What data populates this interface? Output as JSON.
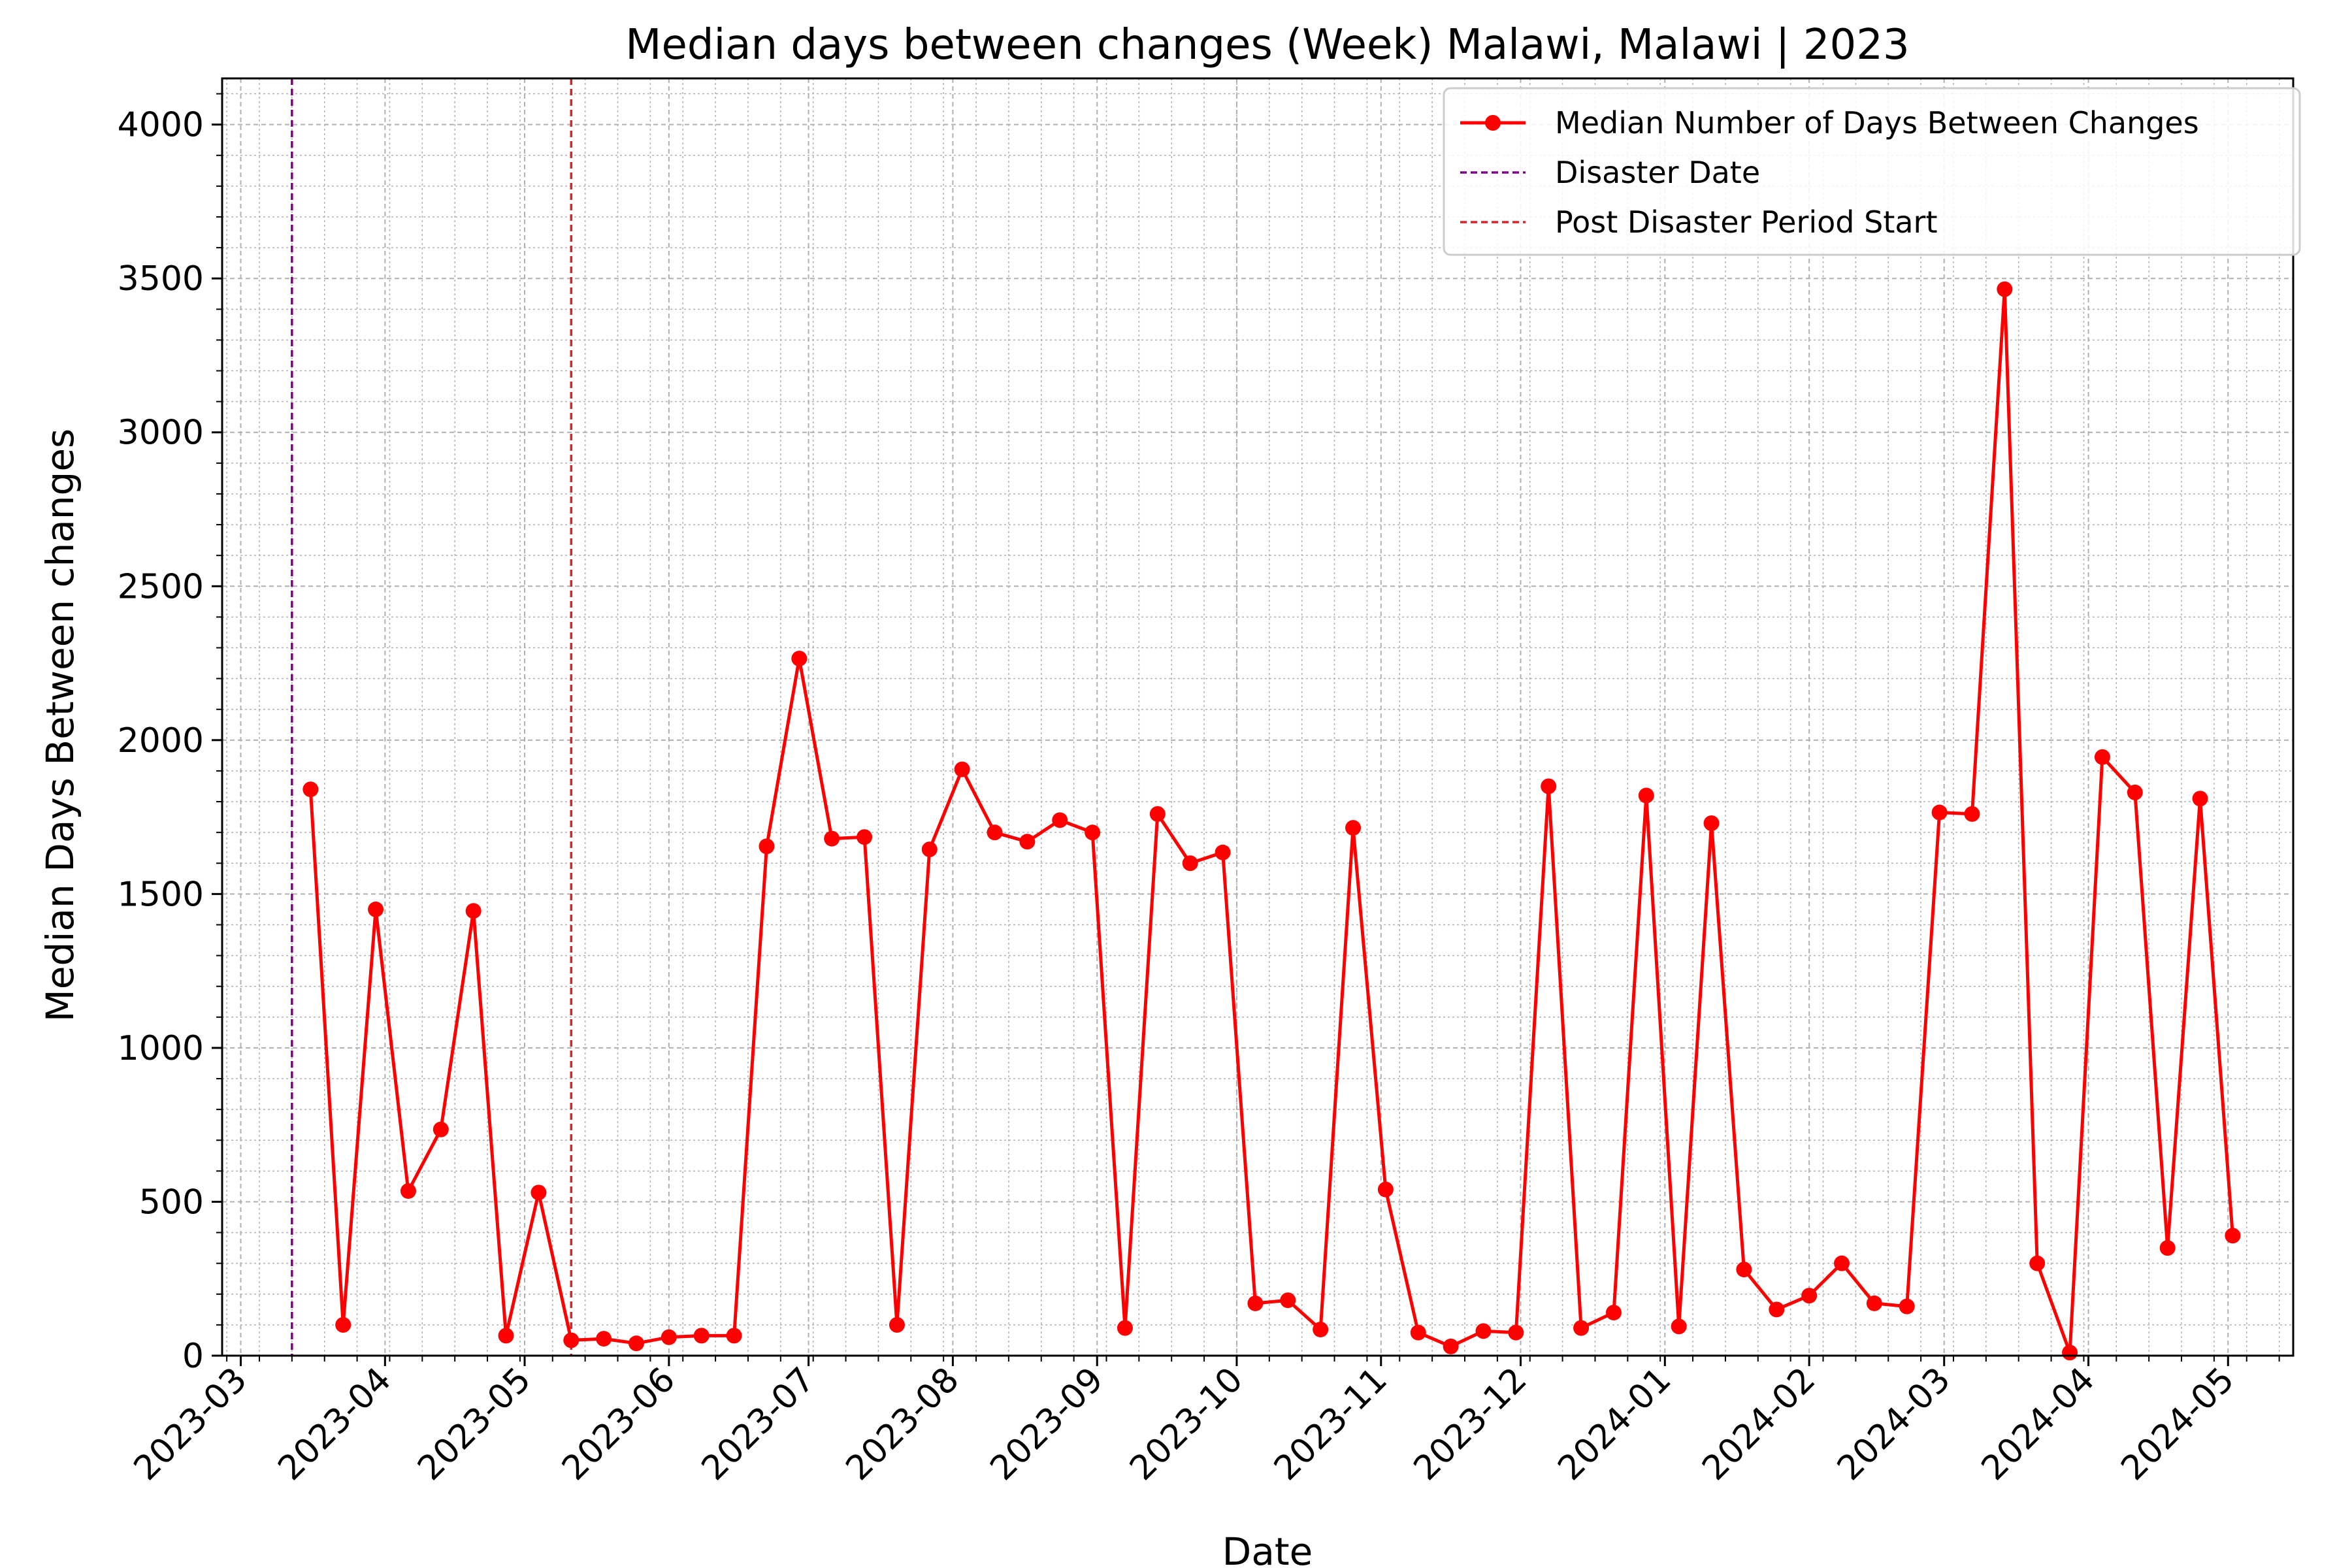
{
  "chart_data": {
    "type": "line",
    "title": "Median days between changes (Week) Malawi, Malawi | 2023",
    "xlabel": "Date",
    "ylabel": "Median Days Between changes",
    "ylim": [
      0,
      4150
    ],
    "yticks": [
      0,
      500,
      1000,
      1500,
      2000,
      2500,
      3000,
      3500,
      4000
    ],
    "xlim": [
      "2023-02-25",
      "2024-05-15"
    ],
    "xticks": [
      "2023-03-01",
      "2023-04-01",
      "2023-05-01",
      "2023-06-01",
      "2023-07-01",
      "2023-08-01",
      "2023-09-01",
      "2023-10-01",
      "2023-11-01",
      "2023-12-01",
      "2024-01-01",
      "2024-02-01",
      "2024-03-01",
      "2024-04-01",
      "2024-05-01"
    ],
    "xtick_labels": [
      "2023-03",
      "2023-04",
      "2023-05",
      "2023-06",
      "2023-07",
      "2023-08",
      "2023-09",
      "2023-10",
      "2023-11",
      "2023-12",
      "2024-01",
      "2024-02",
      "2024-03",
      "2024-04",
      "2024-05"
    ],
    "grid": true,
    "legend_position": "top-right",
    "legend": [
      "Median Number of Days Between Changes",
      "Disaster Date",
      "Post Disaster Period Start"
    ],
    "colors": {
      "series": "#ff0000",
      "disaster": "#800080",
      "post": "#d62728",
      "grid": "#b0b0b0"
    },
    "vlines": [
      {
        "name": "Disaster Date",
        "date": "2023-03-12",
        "color": "#800080"
      },
      {
        "name": "Post Disaster Period Start",
        "date": "2023-05-11",
        "color": "#d62728"
      }
    ],
    "series": [
      {
        "name": "Median Number of Days Between Changes",
        "x": [
          "2023-03-16",
          "2023-03-23",
          "2023-03-30",
          "2023-04-06",
          "2023-04-13",
          "2023-04-20",
          "2023-04-27",
          "2023-05-04",
          "2023-05-11",
          "2023-05-18",
          "2023-05-25",
          "2023-06-01",
          "2023-06-08",
          "2023-06-15",
          "2023-06-22",
          "2023-06-29",
          "2023-07-06",
          "2023-07-13",
          "2023-07-20",
          "2023-07-27",
          "2023-08-03",
          "2023-08-10",
          "2023-08-17",
          "2023-08-24",
          "2023-08-31",
          "2023-09-07",
          "2023-09-14",
          "2023-09-21",
          "2023-09-28",
          "2023-10-05",
          "2023-10-12",
          "2023-10-19",
          "2023-10-26",
          "2023-11-02",
          "2023-11-09",
          "2023-11-16",
          "2023-11-23",
          "2023-11-30",
          "2023-12-07",
          "2023-12-14",
          "2023-12-21",
          "2023-12-28",
          "2024-01-04",
          "2024-01-11",
          "2024-01-18",
          "2024-01-25",
          "2024-02-01",
          "2024-02-08",
          "2024-02-15",
          "2024-02-22",
          "2024-02-29",
          "2024-03-07",
          "2024-03-14",
          "2024-03-21",
          "2024-03-28",
          "2024-04-04",
          "2024-04-11",
          "2024-04-18",
          "2024-04-25",
          "2024-05-02"
        ],
        "values": [
          1840,
          100,
          1450,
          535,
          735,
          1445,
          65,
          530,
          50,
          55,
          40,
          60,
          65,
          65,
          1655,
          2265,
          1680,
          1685,
          100,
          1645,
          1905,
          1700,
          1670,
          1740,
          1700,
          90,
          1760,
          1600,
          1635,
          170,
          180,
          85,
          1715,
          540,
          75,
          30,
          80,
          75,
          1850,
          90,
          140,
          1820,
          95,
          1730,
          280,
          150,
          195,
          300,
          170,
          160,
          1765,
          1760,
          3465,
          300,
          10,
          1945,
          1830,
          350,
          1810,
          390
        ]
      }
    ]
  }
}
